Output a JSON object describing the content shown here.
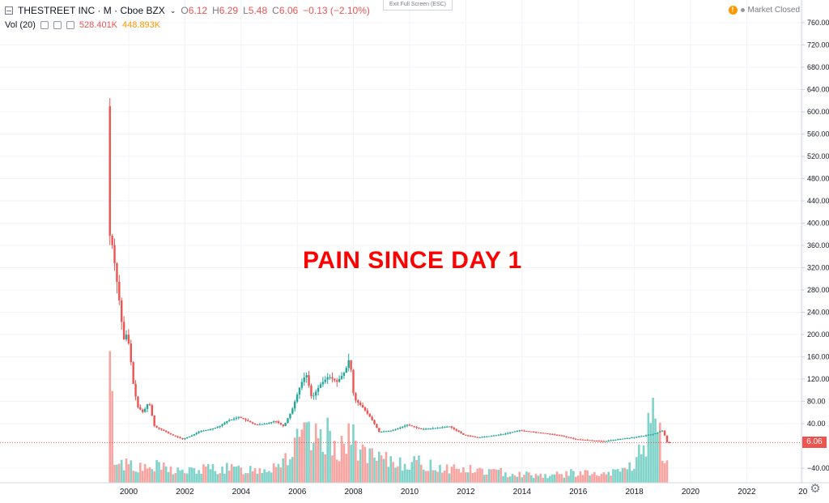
{
  "header": {
    "symbol": "THESTREET INC · M · Cboe BZX",
    "open_label": "O",
    "open": "6.12",
    "high_label": "H",
    "high": "6.29",
    "low_label": "L",
    "low": "5.48",
    "close_label": "C",
    "close": "6.06",
    "change": "−0.13 (−2.10%)",
    "vol_label": "Vol (20)",
    "vol_value": "528.401K",
    "vol_ma": "448.893K",
    "exit_fullscreen": "Exit Full Screen (ESC)",
    "market_status": "Market Closed"
  },
  "annotation": "PAIN SINCE DAY 1",
  "price_label": "6.06",
  "colors": {
    "up": "#26a69a",
    "down": "#ef5350",
    "vol_up": "#7fd3c9",
    "vol_down": "#f8a5a1",
    "grid": "#f0f3fa",
    "annotation": "#ff0000"
  },
  "chart_data": {
    "type": "candlestick",
    "x_tick_labels": [
      "2000",
      "2002",
      "2004",
      "2006",
      "2008",
      "2010",
      "2012",
      "2014",
      "2016",
      "2018",
      "2020",
      "2022",
      "20"
    ],
    "y_tick_labels": [
      "760.00",
      "720.00",
      "680.00",
      "640.00",
      "600.00",
      "560.00",
      "520.00",
      "480.00",
      "440.00",
      "400.00",
      "360.00",
      "320.00",
      "280.00",
      "240.00",
      "200.00",
      "160.00",
      "120.00",
      "80.00",
      "40.00",
      "−40.00"
    ],
    "ylim": [
      -60,
      780
    ],
    "last_price": 6.06,
    "price_series": [
      [
        1999.33,
        610
      ],
      [
        1999.4,
        380
      ],
      [
        1999.5,
        360
      ],
      [
        1999.6,
        320
      ],
      [
        1999.75,
        260
      ],
      [
        1999.9,
        190
      ],
      [
        2000.0,
        200
      ],
      [
        2000.1,
        180
      ],
      [
        2000.25,
        110
      ],
      [
        2000.4,
        70
      ],
      [
        2000.6,
        60
      ],
      [
        2000.8,
        80
      ],
      [
        2001.0,
        35
      ],
      [
        2001.3,
        28
      ],
      [
        2001.6,
        20
      ],
      [
        2002.0,
        12
      ],
      [
        2002.3,
        18
      ],
      [
        2002.6,
        26
      ],
      [
        2003.0,
        30
      ],
      [
        2003.3,
        35
      ],
      [
        2003.6,
        45
      ],
      [
        2004.0,
        52
      ],
      [
        2004.3,
        45
      ],
      [
        2004.6,
        38
      ],
      [
        2005.0,
        40
      ],
      [
        2005.3,
        45
      ],
      [
        2005.6,
        35
      ],
      [
        2005.9,
        65
      ],
      [
        2006.2,
        110
      ],
      [
        2006.4,
        130
      ],
      [
        2006.6,
        85
      ],
      [
        2006.9,
        110
      ],
      [
        2007.2,
        125
      ],
      [
        2007.5,
        115
      ],
      [
        2007.8,
        135
      ],
      [
        2007.95,
        160
      ],
      [
        2008.1,
        85
      ],
      [
        2008.4,
        70
      ],
      [
        2008.7,
        50
      ],
      [
        2009.0,
        25
      ],
      [
        2009.5,
        28
      ],
      [
        2010.0,
        38
      ],
      [
        2010.5,
        30
      ],
      [
        2011.0,
        32
      ],
      [
        2011.5,
        35
      ],
      [
        2012.0,
        20
      ],
      [
        2012.5,
        15
      ],
      [
        2013.0,
        18
      ],
      [
        2013.5,
        22
      ],
      [
        2014.0,
        28
      ],
      [
        2014.5,
        25
      ],
      [
        2015.0,
        22
      ],
      [
        2015.5,
        18
      ],
      [
        2016.0,
        12
      ],
      [
        2016.5,
        10
      ],
      [
        2017.0,
        8
      ],
      [
        2017.5,
        12
      ],
      [
        2018.0,
        15
      ],
      [
        2018.4,
        18
      ],
      [
        2018.8,
        22
      ],
      [
        2019.1,
        28
      ],
      [
        2019.25,
        6.06
      ]
    ],
    "volume_series": [
      [
        1999.33,
        150,
        "down"
      ],
      [
        1999.5,
        35,
        "down"
      ],
      [
        1999.75,
        25,
        "up"
      ],
      [
        2000.0,
        30,
        "up"
      ],
      [
        2000.5,
        18,
        "down"
      ],
      [
        2001.0,
        22,
        "down"
      ],
      [
        2002.0,
        15,
        "up"
      ],
      [
        2003.0,
        20,
        "up"
      ],
      [
        2004.0,
        18,
        "up"
      ],
      [
        2005.0,
        20,
        "up"
      ],
      [
        2005.8,
        40,
        "up"
      ],
      [
        2006.2,
        65,
        "up"
      ],
      [
        2006.6,
        55,
        "up"
      ],
      [
        2007.0,
        65,
        "up"
      ],
      [
        2007.5,
        50,
        "down"
      ],
      [
        2008.0,
        60,
        "down"
      ],
      [
        2008.5,
        35,
        "down"
      ],
      [
        2009.0,
        30,
        "down"
      ],
      [
        2010.0,
        28,
        "up"
      ],
      [
        2011.0,
        22,
        "down"
      ],
      [
        2012.0,
        18,
        "down"
      ],
      [
        2013.0,
        15,
        "down"
      ],
      [
        2014.0,
        12,
        "up"
      ],
      [
        2015.0,
        10,
        "up"
      ],
      [
        2016.0,
        14,
        "down"
      ],
      [
        2017.0,
        10,
        "down"
      ],
      [
        2018.0,
        25,
        "up"
      ],
      [
        2018.75,
        90,
        "up"
      ],
      [
        2019.0,
        40,
        "down"
      ],
      [
        2019.2,
        30,
        "down"
      ]
    ]
  }
}
